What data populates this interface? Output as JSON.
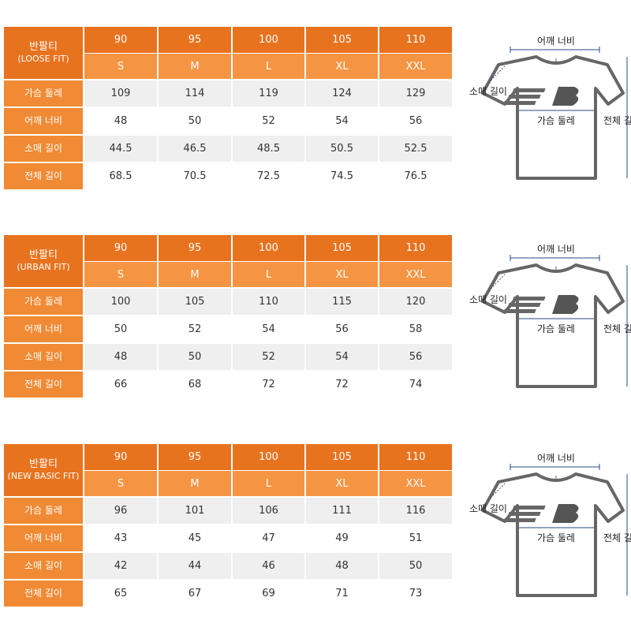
{
  "tables": [
    {
      "title": "반팔티",
      "subtitle": "(LOOSE FIT)",
      "sizes": [
        90,
        95,
        100,
        105,
        110
      ],
      "letters": [
        "S",
        "M",
        "L",
        "XL",
        "XXL"
      ],
      "rows": [
        {
          "label": "가슴 둘레",
          "values": [
            109,
            114,
            119,
            124,
            129
          ]
        },
        {
          "label": "어깨 너비",
          "values": [
            48,
            50,
            52,
            54,
            56
          ]
        },
        {
          "label": "소매 길이",
          "values": [
            44.5,
            46.5,
            48.5,
            50.5,
            52.5
          ]
        },
        {
          "label": "전체 길이",
          "values": [
            68.5,
            70.5,
            72.5,
            74.5,
            76.5
          ]
        }
      ]
    },
    {
      "title": "반팔티",
      "subtitle": "(URBAN FIT)",
      "sizes": [
        90,
        95,
        100,
        105,
        110
      ],
      "letters": [
        "S",
        "M",
        "L",
        "XL",
        "XXL"
      ],
      "rows": [
        {
          "label": "가슴 둘레",
          "values": [
            100,
            105,
            110,
            115,
            120
          ]
        },
        {
          "label": "어깨 너비",
          "values": [
            50,
            52,
            54,
            56,
            58
          ]
        },
        {
          "label": "소매 길이",
          "values": [
            48,
            50,
            52,
            54,
            56
          ]
        },
        {
          "label": "전체 길이",
          "values": [
            66,
            68,
            72,
            72,
            74
          ]
        }
      ]
    },
    {
      "title": "반팔티",
      "subtitle": "(NEW BASIC FIT)",
      "sizes": [
        90,
        95,
        100,
        105,
        110
      ],
      "letters": [
        "S",
        "M",
        "L",
        "XL",
        "XXL"
      ],
      "rows": [
        {
          "label": "가슴 둘레",
          "values": [
            96,
            101,
            106,
            111,
            116
          ]
        },
        {
          "label": "어깨 너비",
          "values": [
            43,
            45,
            47,
            49,
            51
          ]
        },
        {
          "label": "소매 길이",
          "values": [
            42,
            44,
            46,
            48,
            50
          ]
        },
        {
          "label": "전체 길이",
          "values": [
            65,
            67,
            69,
            71,
            73
          ]
        }
      ]
    }
  ],
  "diagram": {
    "shoulder": "어깨 너비",
    "sleeve": "소매 길이",
    "chest": "가슴 둘레",
    "length": "전체 길이"
  }
}
